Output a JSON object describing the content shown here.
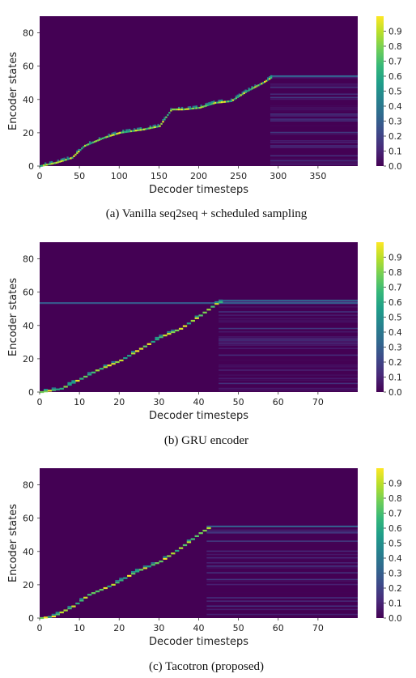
{
  "chart_data": [
    {
      "type": "heatmap",
      "caption": "(a)  Vanilla seq2seq + scheduled sampling",
      "xlabel": "Decoder timesteps",
      "ylabel": "Encoder states",
      "xlim": [
        0,
        400
      ],
      "ylim": [
        0,
        90
      ],
      "xticks": [
        0,
        50,
        100,
        150,
        200,
        250,
        300,
        350
      ],
      "yticks": [
        0,
        20,
        40,
        60,
        80
      ],
      "colorbar": {
        "min": 0.0,
        "max": 1.0,
        "ticks": [
          0.0,
          0.1,
          0.2,
          0.3,
          0.4,
          0.5,
          0.6,
          0.7,
          0.8,
          0.9
        ]
      },
      "alignment": [
        [
          0,
          0
        ],
        [
          20,
          2
        ],
        [
          40,
          5
        ],
        [
          55,
          12
        ],
        [
          80,
          17
        ],
        [
          100,
          20
        ],
        [
          130,
          22
        ],
        [
          150,
          24
        ],
        [
          165,
          34
        ],
        [
          180,
          34
        ],
        [
          200,
          35
        ],
        [
          220,
          38
        ],
        [
          240,
          39
        ],
        [
          260,
          45
        ],
        [
          280,
          50
        ],
        [
          290,
          53
        ]
      ],
      "alignment_end": 290,
      "tail_encoder_max": 54
    },
    {
      "type": "heatmap",
      "caption": "(b)  GRU encoder",
      "xlabel": "Decoder timesteps",
      "ylabel": "Encoder states",
      "xlim": [
        0,
        80
      ],
      "ylim": [
        0,
        90
      ],
      "xticks": [
        0,
        10,
        20,
        30,
        40,
        50,
        60,
        70
      ],
      "yticks": [
        0,
        20,
        40,
        60,
        80
      ],
      "colorbar": {
        "min": 0.0,
        "max": 1.0,
        "ticks": [
          0.0,
          0.1,
          0.2,
          0.3,
          0.4,
          0.5,
          0.6,
          0.7,
          0.8,
          0.9
        ]
      },
      "alignment": [
        [
          0,
          0
        ],
        [
          5,
          2
        ],
        [
          10,
          8
        ],
        [
          14,
          13
        ],
        [
          20,
          19
        ],
        [
          25,
          26
        ],
        [
          30,
          33
        ],
        [
          35,
          38
        ],
        [
          40,
          46
        ],
        [
          44,
          53
        ],
        [
          45,
          54
        ]
      ],
      "alignment_end": 45,
      "tail_encoder_max": 55
    },
    {
      "type": "heatmap",
      "caption": "(c)  Tacotron (proposed)",
      "xlabel": "Decoder timesteps",
      "ylabel": "Encoder states",
      "xlim": [
        0,
        80
      ],
      "ylim": [
        0,
        90
      ],
      "xticks": [
        0,
        10,
        20,
        30,
        40,
        50,
        60,
        70
      ],
      "yticks": [
        0,
        20,
        40,
        60,
        80
      ],
      "colorbar": {
        "min": 0.0,
        "max": 1.0,
        "ticks": [
          0.0,
          0.1,
          0.2,
          0.3,
          0.4,
          0.5,
          0.6,
          0.7,
          0.8,
          0.9
        ]
      },
      "alignment": [
        [
          0,
          0
        ],
        [
          3,
          1
        ],
        [
          8,
          7
        ],
        [
          12,
          14
        ],
        [
          18,
          20
        ],
        [
          24,
          28
        ],
        [
          30,
          34
        ],
        [
          35,
          42
        ],
        [
          40,
          51
        ],
        [
          42,
          54
        ]
      ],
      "alignment_end": 42,
      "tail_encoder_max": 55
    }
  ],
  "colors": {
    "background": "#440154",
    "viridis": [
      "#440154",
      "#482878",
      "#3e4989",
      "#31688e",
      "#26828e",
      "#1f9e89",
      "#35b779",
      "#6ece58",
      "#b5de2b",
      "#fde725"
    ]
  }
}
